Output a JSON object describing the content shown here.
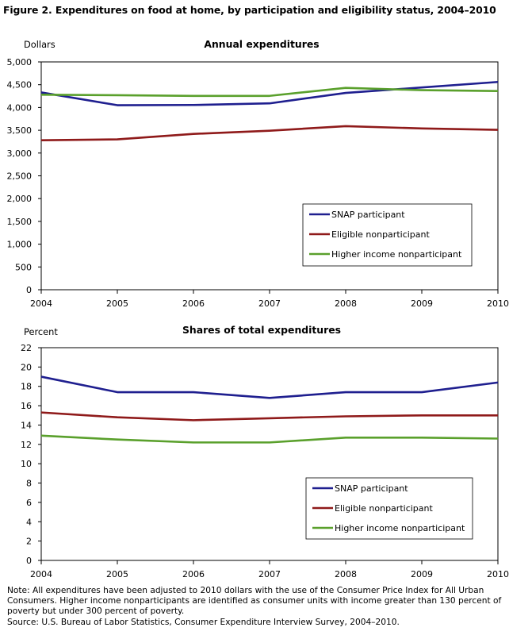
{
  "figure": {
    "title": "Figure 2. Expenditures on food at home, by participation and eligibility status, 2004–2010"
  },
  "chart_data": [
    {
      "type": "line",
      "title": "Annual expenditures",
      "ylabel": "Dollars",
      "xlabel": "",
      "x": [
        2004,
        2005,
        2006,
        2007,
        2008,
        2009,
        2010
      ],
      "xticks": [
        "2004",
        "2005",
        "2006",
        "2007",
        "2008",
        "2009",
        "2010"
      ],
      "ylim": [
        0,
        5000
      ],
      "yticks": [
        "0",
        "500",
        "1,000",
        "1,500",
        "2,000",
        "2,500",
        "3,000",
        "3,500",
        "4,000",
        "4,500",
        "5,000"
      ],
      "grid": false,
      "legend": "bottom-right",
      "series": [
        {
          "name": "SNAP participant",
          "color": "#1f1f8f",
          "values": [
            4330,
            4050,
            4055,
            4090,
            4320,
            4440,
            4560
          ]
        },
        {
          "name": "Eligible nonparticipant",
          "color": "#8f1a1a",
          "values": [
            3280,
            3300,
            3420,
            3490,
            3590,
            3540,
            3510
          ]
        },
        {
          "name": "Higher income nonparticipant",
          "color": "#5aa02c",
          "values": [
            4280,
            4270,
            4255,
            4255,
            4430,
            4380,
            4360
          ]
        }
      ]
    },
    {
      "type": "line",
      "title": "Shares of total expenditures",
      "ylabel": "Percent",
      "xlabel": "",
      "x": [
        2004,
        2005,
        2006,
        2007,
        2008,
        2009,
        2010
      ],
      "xticks": [
        "2004",
        "2005",
        "2006",
        "2007",
        "2008",
        "2009",
        "2010"
      ],
      "ylim": [
        0,
        22
      ],
      "yticks": [
        "0",
        "2",
        "4",
        "6",
        "8",
        "10",
        "12",
        "14",
        "16",
        "18",
        "20",
        "22"
      ],
      "grid": false,
      "legend": "bottom-right",
      "series": [
        {
          "name": "SNAP participant",
          "color": "#1f1f8f",
          "values": [
            19.0,
            17.4,
            17.4,
            16.8,
            17.4,
            17.4,
            18.4
          ]
        },
        {
          "name": "Eligible nonparticipant",
          "color": "#8f1a1a",
          "values": [
            15.3,
            14.8,
            14.5,
            14.7,
            14.9,
            15.0,
            15.0
          ]
        },
        {
          "name": "Higher income nonparticipant",
          "color": "#5aa02c",
          "values": [
            12.9,
            12.5,
            12.2,
            12.2,
            12.7,
            12.7,
            12.6
          ]
        }
      ]
    }
  ],
  "footer": {
    "note": "Note:  All expenditures have been adjusted to 2010 dollars with the use of the Consumer Price Index for All Urban Consumers. Higher income nonparticipants  are identified as consumer units with income greater than 130 percent of poverty but under 300 percent of poverty.",
    "source": "Source:  U.S. Bureau of Labor Statistics, Consumer Expenditure Interview Survey, 2004–2010."
  }
}
